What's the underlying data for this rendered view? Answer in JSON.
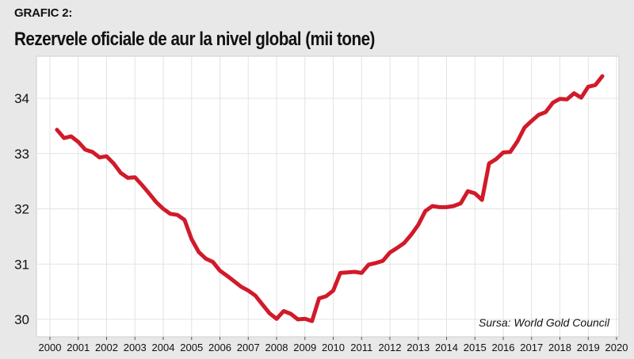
{
  "header": {
    "kicker": "GRAFIC 2:",
    "title": "Rezervele oficiale de aur la nivel global (mii tone)"
  },
  "source_note": "Sursa: World Gold Council",
  "colors": {
    "line": "#d11a2a",
    "plot_bg": "#ffffff",
    "page_bg": "#e8e8e8",
    "grid": "#e3e3e3"
  },
  "chart_data": {
    "type": "line",
    "title": "Rezervele oficiale de aur la nivel global (mii tone)",
    "xlabel": "",
    "ylabel": "",
    "xlim": [
      2000,
      2020
    ],
    "ylim": [
      29.8,
      34.8
    ],
    "x_ticks": [
      "2000",
      "2001",
      "2002",
      "2003",
      "2004",
      "2005",
      "2006",
      "2007",
      "2008",
      "2009",
      "2010",
      "2011",
      "2012",
      "2013",
      "2014",
      "2015",
      "2016",
      "2017",
      "2018",
      "2019",
      "2020"
    ],
    "y_ticks": [
      "30",
      "31",
      "32",
      "33",
      "34"
    ],
    "grid": true,
    "legend": "none",
    "series": [
      {
        "x": [
          2000.25,
          2000.5,
          2000.75,
          2001.0,
          2001.25,
          2001.5,
          2001.75,
          2002.0,
          2002.25,
          2002.5,
          2002.75,
          2003.0,
          2003.25,
          2003.5,
          2003.75,
          2004.0,
          2004.25,
          2004.5,
          2004.75,
          2005.0,
          2005.25,
          2005.5,
          2005.75,
          2006.0,
          2006.25,
          2006.5,
          2006.75,
          2007.0,
          2007.25,
          2007.5,
          2007.75,
          2008.0,
          2008.25,
          2008.5,
          2008.75,
          2009.0,
          2009.25,
          2009.5,
          2009.75,
          2010.0,
          2010.25,
          2010.5,
          2010.75,
          2011.0,
          2011.25,
          2011.5,
          2011.75,
          2012.0,
          2012.25,
          2012.5,
          2012.75,
          2013.0,
          2013.25,
          2013.5,
          2013.75,
          2014.0,
          2014.25,
          2014.5,
          2014.75,
          2015.0,
          2015.25,
          2015.5,
          2015.75,
          2016.0,
          2016.25,
          2016.5,
          2016.75,
          2017.0,
          2017.25,
          2017.5,
          2017.75,
          2018.0,
          2018.25,
          2018.5,
          2018.75,
          2019.0,
          2019.25,
          2019.5
        ],
        "values": [
          33.43,
          33.28,
          33.31,
          33.21,
          33.07,
          33.03,
          32.93,
          32.95,
          32.82,
          32.65,
          32.56,
          32.57,
          32.43,
          32.28,
          32.12,
          32.0,
          31.91,
          31.89,
          31.8,
          31.45,
          31.22,
          31.1,
          31.04,
          30.88,
          30.79,
          30.69,
          30.59,
          30.52,
          30.43,
          30.27,
          30.11,
          30.01,
          30.15,
          30.1,
          30.0,
          30.01,
          29.97,
          30.38,
          30.42,
          30.52,
          30.84,
          30.85,
          30.86,
          30.84,
          30.99,
          31.02,
          31.06,
          31.21,
          31.29,
          31.38,
          31.53,
          31.71,
          31.96,
          32.05,
          32.03,
          32.03,
          32.05,
          32.1,
          32.32,
          32.28,
          32.16,
          32.82,
          32.9,
          33.02,
          33.03,
          33.22,
          33.47,
          33.59,
          33.7,
          33.75,
          33.92,
          33.99,
          33.98,
          34.09,
          34.01,
          34.21,
          34.24,
          34.4
        ]
      }
    ]
  }
}
